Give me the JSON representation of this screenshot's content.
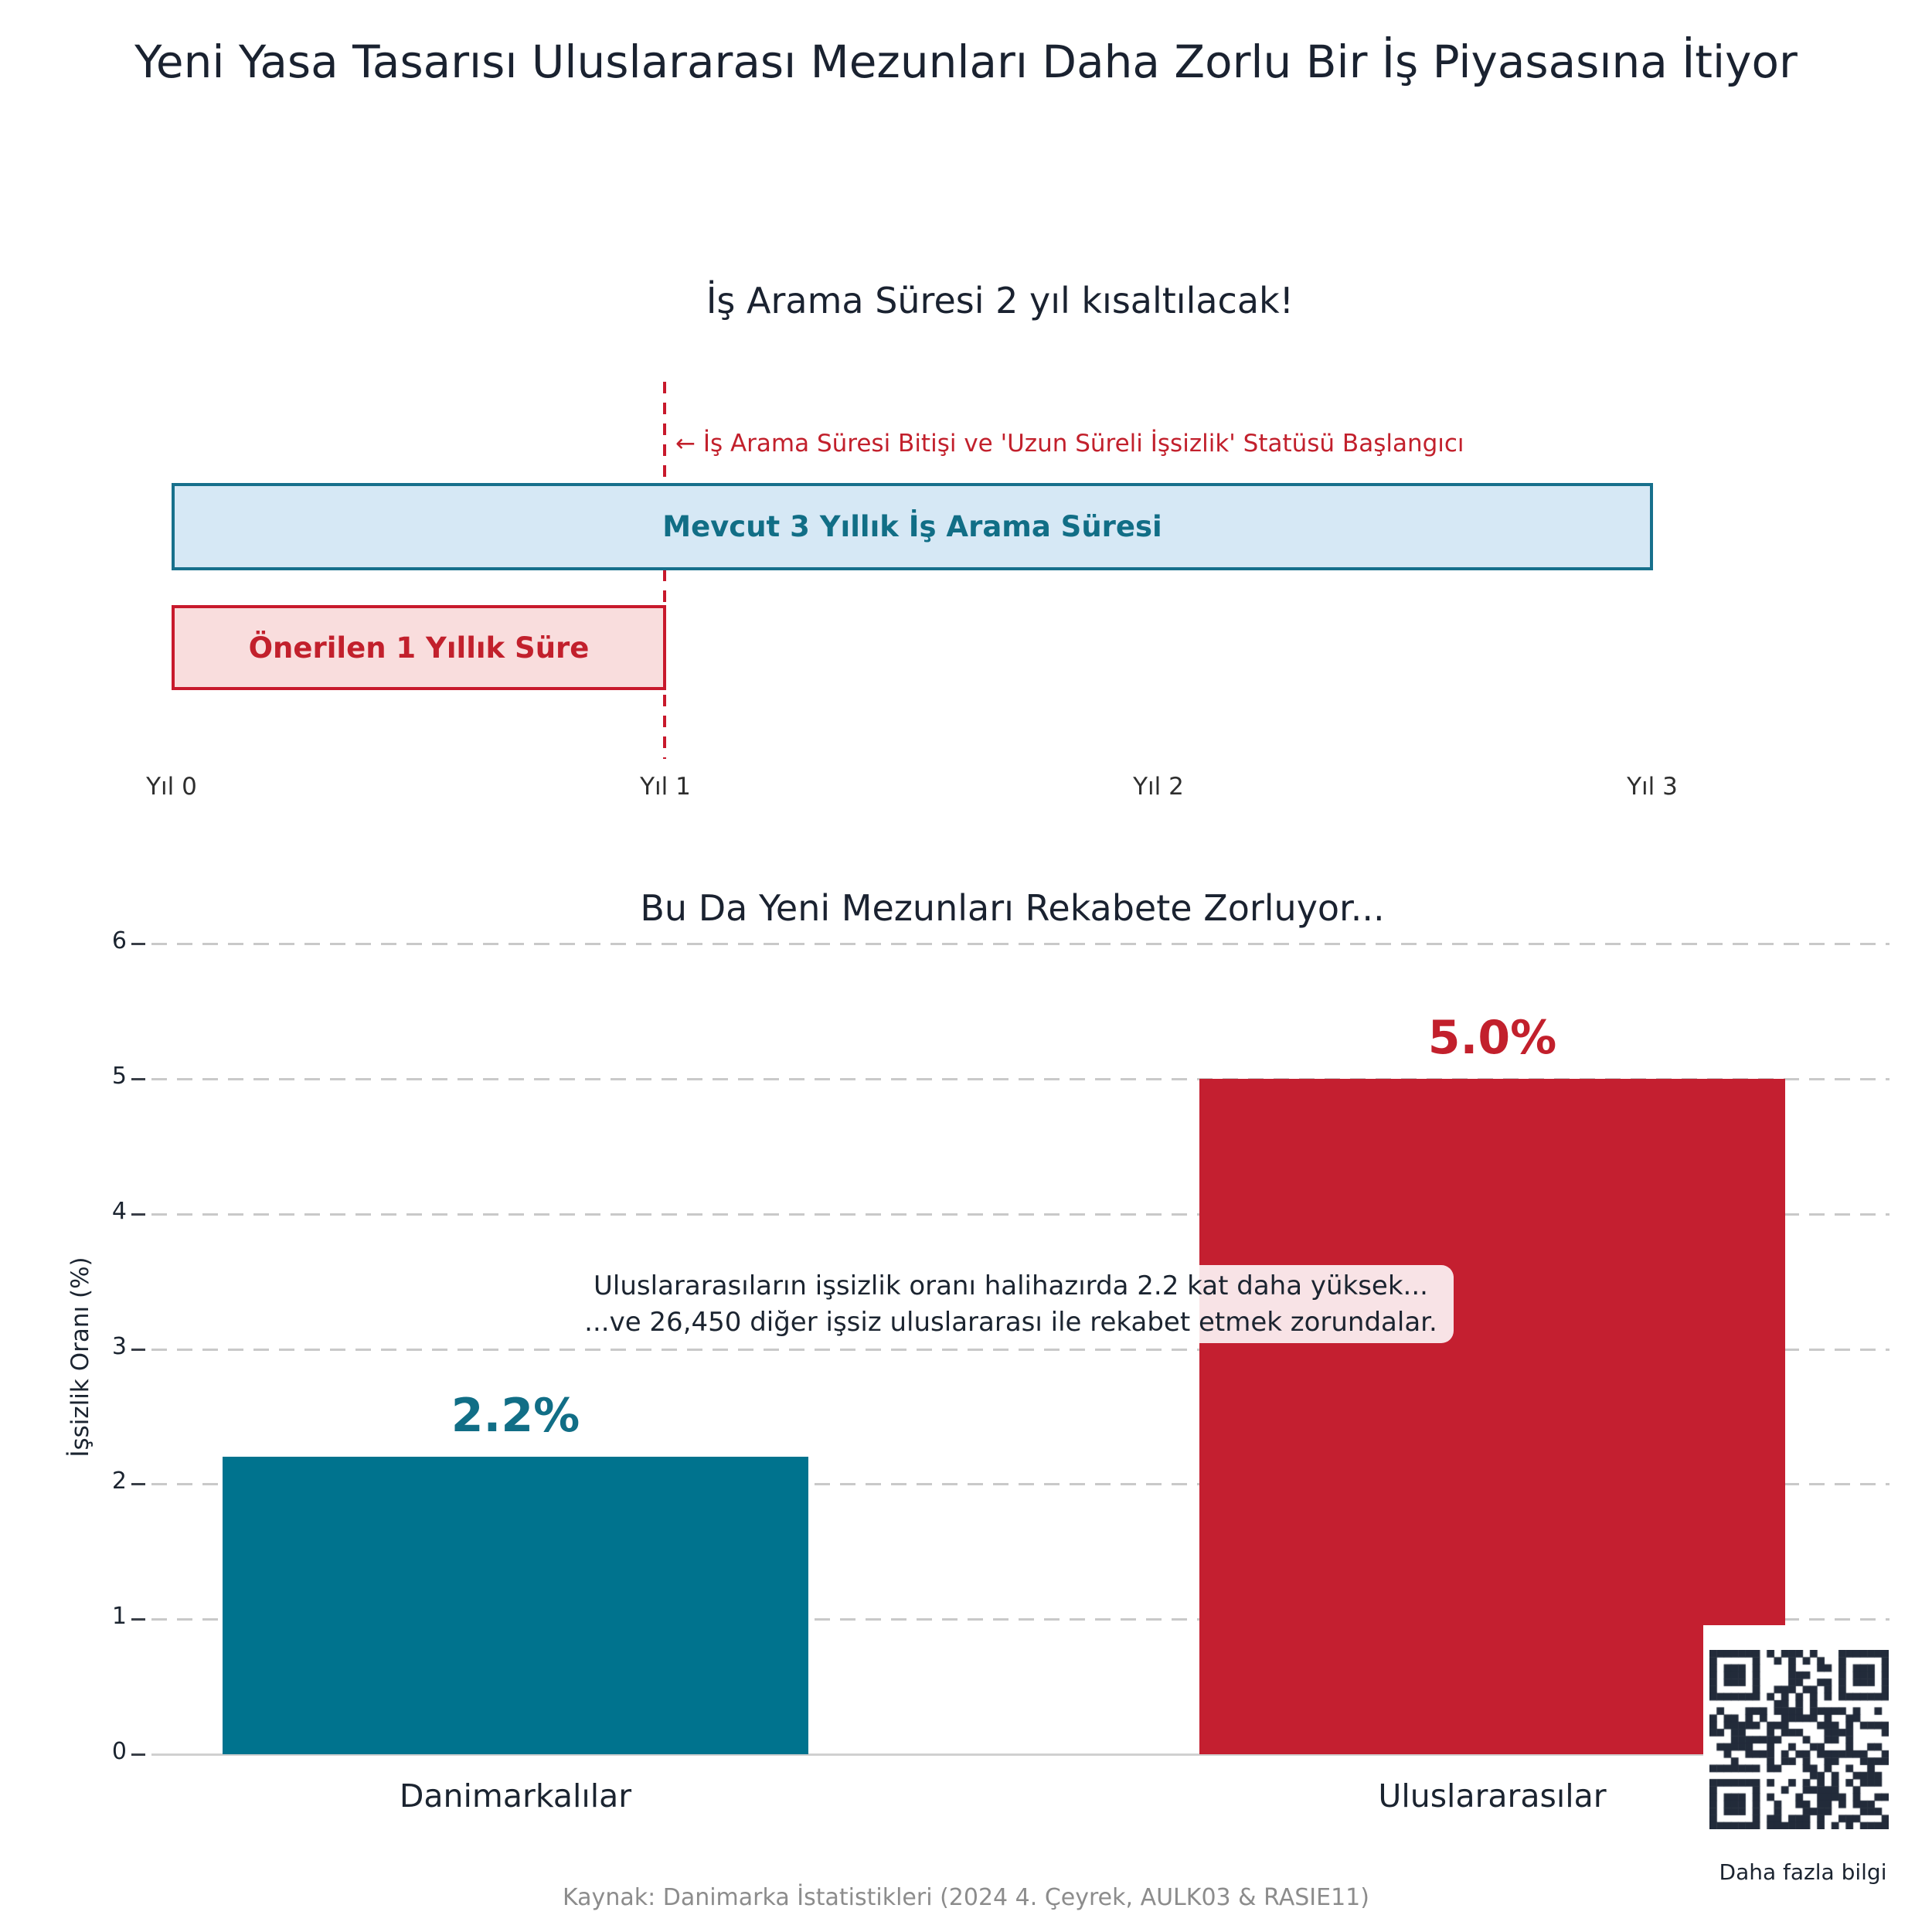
{
  "page": {
    "title": "Yeni Yasa Tasarısı Uluslararası Mezunları Daha Zorlu Bir İş Piyasasına İtiyor",
    "source": "Kaynak: Danimarka İstatistikleri (2024 4. Çeyrek, AULK03 & RASIE11)",
    "qr_label": "Daha fazla bilgi",
    "colors": {
      "dark_text": "#1a2230",
      "teal_bar": "#00738e",
      "teal_text": "#116e86",
      "red_bar": "#c41f30",
      "red_text": "#c2202c",
      "red_border": "#c8192c",
      "light_blue_fill": "#d6e8f5",
      "light_pink_fill": "#f9dddd",
      "grid_gray": "#c9c9c9",
      "muted_gray": "#8c8c8c"
    }
  },
  "chart_data": [
    {
      "type": "bar",
      "subtype": "horizontal-timeline",
      "title": "İş Arama Süresi 2 yıl kısaltılacak!",
      "xlim": [
        0,
        3
      ],
      "x_tick_labels": [
        "Yıl 0",
        "Yıl 1",
        "Yıl 2",
        "Yıl 3"
      ],
      "bars": [
        {
          "label": "Mevcut 3 Yıllık İş Arama Süresi",
          "start": 0,
          "end": 3,
          "fill": "#d6e8f5",
          "border": "#17708c"
        },
        {
          "label": "Önerilen 1 Yıllık Süre",
          "start": 0,
          "end": 1,
          "fill": "#f9dddd",
          "border": "#c8192c"
        }
      ],
      "vline": {
        "x": 1,
        "style": "dashed",
        "color": "#c8192c",
        "annotation": "← İş Arama Süresi Bitişi ve 'Uzun Süreli İşsizlik' Statüsü Başlangıcı"
      }
    },
    {
      "type": "bar",
      "title": "Bu Da Yeni Mezunları Rekabete Zorluyor...",
      "categories": [
        "Danimarkalılar",
        "Uluslararasılar"
      ],
      "values": [
        2.2,
        5.0
      ],
      "value_labels": [
        "2.2%",
        "5.0%"
      ],
      "bar_colors": [
        "#00738e",
        "#c41f30"
      ],
      "label_colors": [
        "#116e86",
        "#c2202c"
      ],
      "ylabel": "İşsizlik Oranı (%)",
      "ylim": [
        0,
        6
      ],
      "yticks": [
        0,
        1,
        2,
        3,
        4,
        5,
        6
      ],
      "grid": "horizontal-dashed",
      "legend": "none",
      "annotation_line1": "Uluslararasıların işsizlik oranı halihazırda 2.2 kat daha yüksek...",
      "annotation_line2": "...ve 26,450 diğer işsiz uluslararası ile rekabet etmek zorundalar."
    }
  ]
}
